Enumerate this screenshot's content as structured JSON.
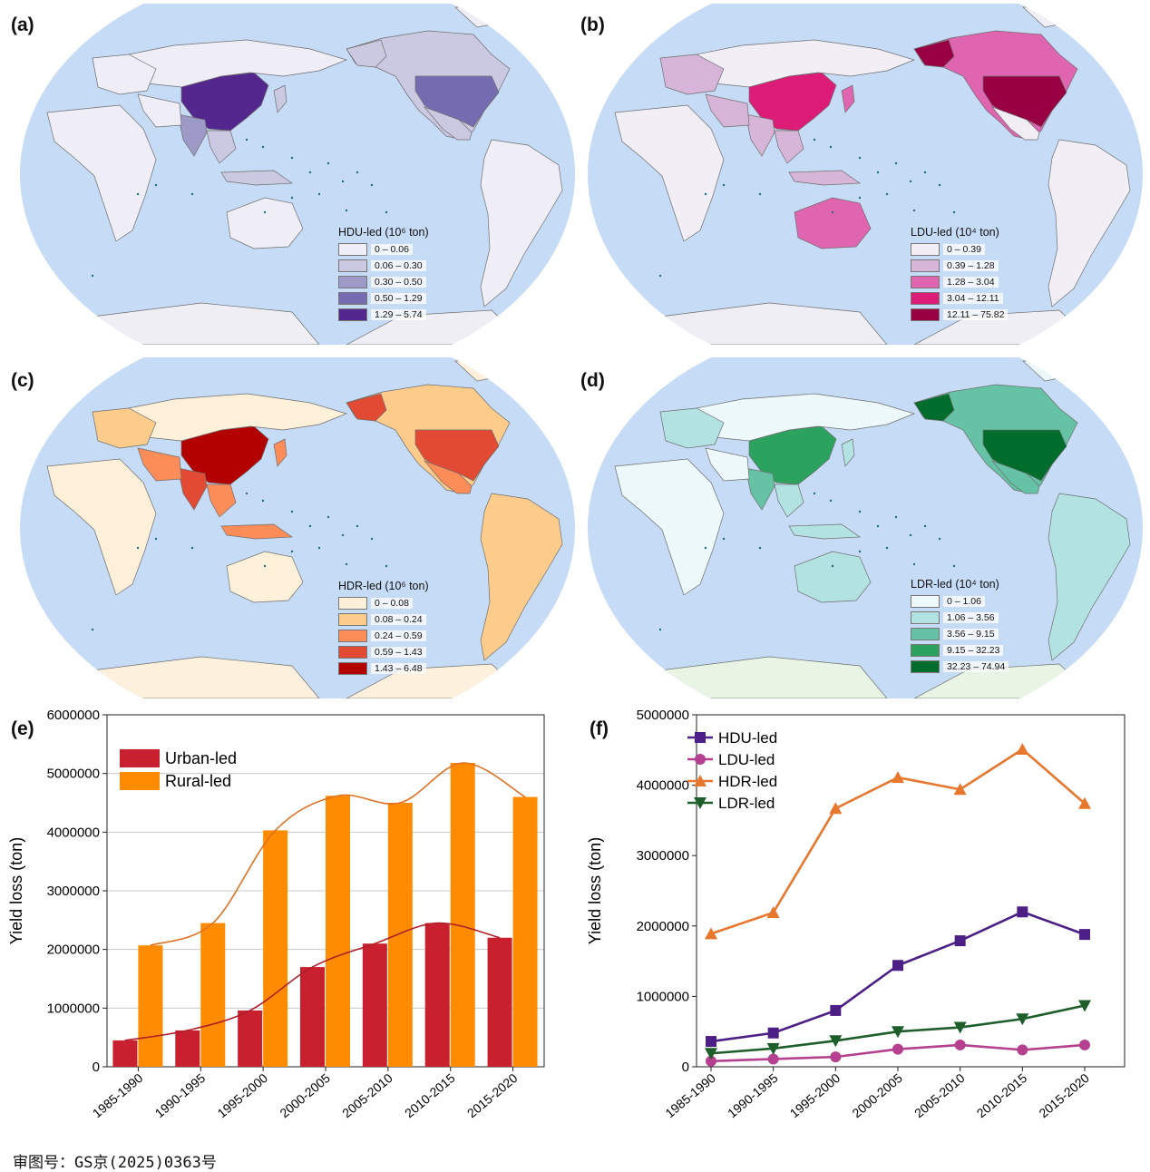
{
  "panels": {
    "a": "(a)",
    "b": "(b)",
    "c": "(c)",
    "d": "(d)",
    "e": "(e)",
    "f": "(f)"
  },
  "maps": [
    {
      "id": "a",
      "legend_title": "HDU-led (10⁶ ton)",
      "classes": [
        "0 – 0.06",
        "0.06 – 0.30",
        "0.30 – 0.50",
        "0.50 – 1.29",
        "1.29 – 5.74"
      ],
      "colors": [
        "#efeef7",
        "#cbc9e2",
        "#9e9ac8",
        "#756bb1",
        "#54278f"
      ]
    },
    {
      "id": "b",
      "legend_title": "LDU-led (10⁴ ton)",
      "classes": [
        "0 – 0.39",
        "0.39 – 1.28",
        "1.28 – 3.04",
        "3.04 – 12.11",
        "12.11 – 75.82"
      ],
      "colors": [
        "#f1eef6",
        "#d7b5d8",
        "#df65b0",
        "#dd1c77",
        "#980043"
      ]
    },
    {
      "id": "c",
      "legend_title": "HDR-led (10⁶ ton)",
      "classes": [
        "0 – 0.08",
        "0.08 – 0.24",
        "0.24 – 0.59",
        "0.59 – 1.43",
        "1.43 – 6.48"
      ],
      "colors": [
        "#fef0d9",
        "#fdcc8a",
        "#fc8d59",
        "#e34a33",
        "#b30000"
      ]
    },
    {
      "id": "d",
      "legend_title": "LDR-led (10⁴ ton)",
      "classes": [
        "0 – 1.06",
        "1.06 – 3.56",
        "3.56 – 9.15",
        "9.15 – 32.23",
        "32.23 – 74.94"
      ],
      "colors": [
        "#edf8fb",
        "#b2e2e2",
        "#66c2a4",
        "#2ca25f",
        "#006d2c"
      ]
    }
  ],
  "footer": {
    "text": "审图号：GS京(2025)0363号"
  },
  "chart_data": [
    {
      "id": "e",
      "type": "bar",
      "categories": [
        "1985-1990",
        "1990-1995",
        "1995-2000",
        "2000-2005",
        "2005-2010",
        "2010-2015",
        "2015-2020"
      ],
      "series": [
        {
          "name": "Urban-led",
          "color": "#c8202f",
          "values": [
            450000,
            620000,
            960000,
            1700000,
            2100000,
            2450000,
            2200000
          ]
        },
        {
          "name": "Rural-led",
          "color": "#ff8c00",
          "values": [
            2070000,
            2450000,
            4030000,
            4620000,
            4500000,
            5180000,
            4600000
          ]
        }
      ],
      "xlabel": "",
      "ylabel": "Yield loss (ton)",
      "ylim": [
        0,
        6000000
      ],
      "yticks": [
        0,
        1000000,
        2000000,
        3000000,
        4000000,
        5000000,
        6000000
      ],
      "grid": true,
      "legend": "top-left"
    },
    {
      "id": "f",
      "type": "line",
      "categories": [
        "1985-1990",
        "1990-1995",
        "1995-2000",
        "2000-2005",
        "2005-2010",
        "2010-2015",
        "2015-2020"
      ],
      "series": [
        {
          "name": "HDU-led",
          "color": "#4b1f86",
          "marker": "square",
          "values": [
            360000,
            480000,
            800000,
            1440000,
            1790000,
            2200000,
            1880000
          ]
        },
        {
          "name": "LDU-led",
          "color": "#b5408f",
          "marker": "circle",
          "values": [
            80000,
            110000,
            140000,
            250000,
            310000,
            240000,
            310000
          ]
        },
        {
          "name": "HDR-led",
          "color": "#e8772e",
          "marker": "triangle-up",
          "values": [
            1890000,
            2190000,
            3670000,
            4110000,
            3940000,
            4510000,
            3740000
          ]
        },
        {
          "name": "LDR-led",
          "color": "#1d5e2a",
          "marker": "triangle-down",
          "values": [
            190000,
            260000,
            370000,
            500000,
            560000,
            680000,
            870000
          ]
        }
      ],
      "xlabel": "",
      "ylabel": "Yield loss (ton)",
      "ylim": [
        0,
        5000000
      ],
      "yticks": [
        0,
        1000000,
        2000000,
        3000000,
        4000000,
        5000000
      ],
      "grid": false,
      "legend": "top-left"
    }
  ]
}
